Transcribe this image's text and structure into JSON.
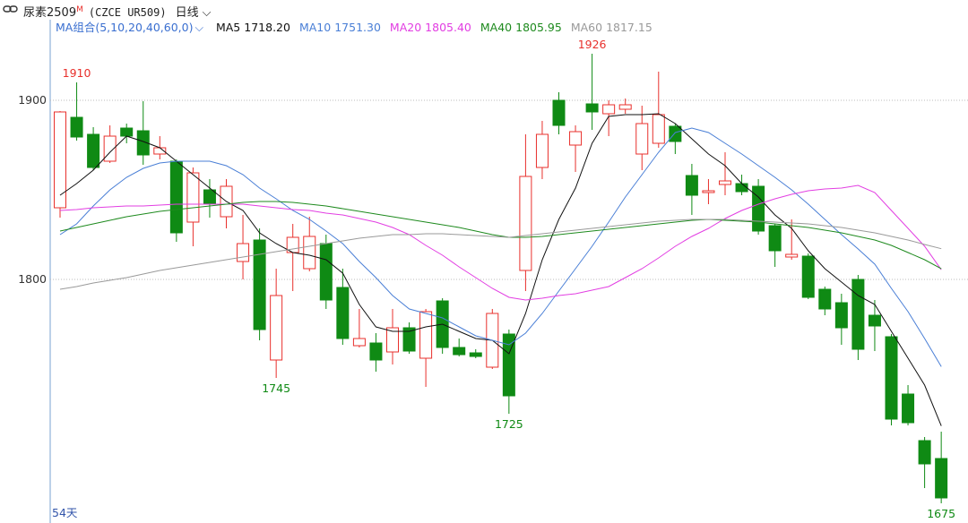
{
  "header": {
    "symbol": "尿素2509",
    "marker": "M",
    "code": "(CZCE UR509)",
    "period": "日线"
  },
  "chart_data": {
    "type": "candlestick",
    "ma_label": "MA组合(5,10,20,40,60,0)",
    "days_label": "54天",
    "ylim": [
      1666,
      1936
    ],
    "yticks": [
      1800,
      1900
    ],
    "grid": true,
    "up_color": "#e8302c",
    "down_color": "#0f8a14",
    "categories": [
      null,
      null,
      null,
      null,
      null,
      null,
      null,
      null,
      null,
      null,
      null,
      null,
      null,
      null,
      null,
      null,
      null,
      null,
      null,
      null,
      null,
      null,
      null,
      null,
      null,
      null,
      null,
      null,
      null,
      null,
      null,
      null,
      null,
      null,
      null,
      null,
      null,
      null,
      null,
      null,
      null,
      null,
      null,
      null,
      null,
      null,
      null,
      null,
      null,
      null,
      null,
      null,
      null,
      null
    ],
    "open": [
      1840,
      1890.5,
      1881,
      1866,
      1884.5,
      1883,
      1870,
      1866,
      1832,
      1850,
      1835,
      1810,
      1822,
      1755,
      1815,
      1806,
      1820,
      1795.5,
      1763,
      1764.5,
      1759.5,
      1773,
      1756,
      1788,
      1762,
      1759,
      1751,
      1769.5,
      1805,
      1862.5,
      1900,
      1875,
      1898,
      1892.5,
      1895,
      1870,
      1876,
      1885.5,
      1858,
      1848.5,
      1853,
      1853.5,
      1852,
      1830,
      1812.5,
      1813,
      1794.5,
      1787,
      1800,
      1780,
      1768,
      1736,
      1710,
      1700
    ],
    "high": [
      1894,
      1910,
      1885,
      1886,
      1887,
      1899.5,
      1880,
      1867,
      1862.5,
      1856,
      1856,
      1836,
      1828.5,
      1806,
      1831,
      1835,
      1825,
      1806,
      1783.5,
      1770,
      1783.5,
      1776,
      1783.5,
      1789.5,
      1767,
      1761,
      1783.5,
      1772,
      1881,
      1888.5,
      1904.5,
      1886,
      1926,
      1900,
      1901,
      1897,
      1916,
      1887,
      1864.5,
      1856,
      1871,
      1858.5,
      1856,
      1831,
      1833.5,
      1814.5,
      1796,
      1792,
      1802.5,
      1788.5,
      1769.5,
      1741,
      1712,
      1715
    ],
    "low": [
      1834.5,
      1877.5,
      1861,
      1865,
      1876,
      1864,
      1867,
      1821,
      1818.5,
      1834.5,
      1828.5,
      1800,
      1766,
      1745,
      1793.5,
      1804.5,
      1783.5,
      1763.5,
      1762,
      1748.5,
      1752.5,
      1758.5,
      1740,
      1758.5,
      1757,
      1756,
      1750,
      1725,
      1793.5,
      1856,
      1881,
      1860,
      1883.5,
      1880,
      1892.5,
      1861,
      1873.5,
      1870,
      1836,
      1842,
      1847,
      1847,
      1825,
      1807,
      1811,
      1789,
      1780,
      1763.5,
      1755,
      1760,
      1718.5,
      1718.5,
      1683.5,
      1675
    ],
    "close": [
      1893.5,
      1879.5,
      1862.5,
      1880,
      1880,
      1869.5,
      1873.5,
      1826,
      1859.5,
      1842.5,
      1852,
      1820,
      1772,
      1791,
      1823.5,
      1824,
      1788.5,
      1767,
      1767,
      1755,
      1773,
      1760,
      1782,
      1762,
      1758,
      1757,
      1781,
      1735,
      1857.5,
      1881,
      1886,
      1882.5,
      1893.5,
      1897.5,
      1897.5,
      1887,
      1892,
      1877,
      1847,
      1849.5,
      1855,
      1849,
      1827,
      1816,
      1814,
      1790,
      1783.5,
      1773,
      1761,
      1774,
      1722,
      1720,
      1697,
      1678
    ],
    "series": [
      {
        "name": "MA5",
        "color": "#111111",
        "last_label": "1718.20",
        "values": [
          1847,
          1853.5,
          1861,
          1871,
          1880,
          1877,
          1873.5,
          1866,
          1858.5,
          1851,
          1843.5,
          1838.5,
          1826,
          1820,
          1815,
          1813.5,
          1811,
          1803.5,
          1786,
          1773.5,
          1771,
          1771,
          1773.5,
          1775,
          1771,
          1767,
          1766,
          1758.5,
          1781,
          1811,
          1833.5,
          1851,
          1876,
          1891,
          1892,
          1892,
          1892.5,
          1887,
          1878.5,
          1870,
          1863.5,
          1853.5,
          1846,
          1836,
          1828.5,
          1816,
          1806,
          1798.5,
          1791,
          1786,
          1771,
          1756,
          1741,
          1718.2
        ]
      },
      {
        "name": "MA10",
        "color": "#4a7fd6",
        "last_label": "1751.30",
        "values": [
          1825,
          1831,
          1841,
          1850,
          1857,
          1862,
          1865,
          1866,
          1866,
          1866,
          1863.5,
          1858.5,
          1851,
          1845,
          1838.5,
          1833.5,
          1827,
          1820,
          1810,
          1801,
          1791,
          1783.5,
          1781,
          1778.5,
          1773.5,
          1768.5,
          1766,
          1763.5,
          1770,
          1781,
          1793.5,
          1806,
          1818.5,
          1832,
          1846,
          1858.5,
          1871,
          1882,
          1884.5,
          1882,
          1876,
          1870,
          1863.5,
          1857,
          1850,
          1842,
          1833.5,
          1825,
          1817,
          1808.5,
          1795,
          1782,
          1767,
          1751.3
        ]
      },
      {
        "name": "MA20",
        "color": "#e23ee2",
        "last_label": "1805.40",
        "values": [
          1838.5,
          1839,
          1840,
          1840.5,
          1841,
          1841,
          1841.5,
          1842,
          1842,
          1842,
          1842,
          1842,
          1841,
          1840,
          1839,
          1838.5,
          1837,
          1836,
          1834,
          1832,
          1829,
          1825,
          1819,
          1813.5,
          1807,
          1801,
          1795,
          1790,
          1788.5,
          1789.5,
          1791,
          1792,
          1794,
          1796,
          1801,
          1806,
          1812,
          1818.5,
          1824,
          1828.5,
          1834,
          1838.5,
          1842,
          1845,
          1847.5,
          1849.5,
          1850.5,
          1851,
          1852.5,
          1848.5,
          1838.5,
          1828.5,
          1818.5,
          1805.4
        ]
      },
      {
        "name": "MA40",
        "color": "#1e8a1e",
        "last_label": "1805.95",
        "values": [
          1827,
          1829,
          1831,
          1833,
          1835,
          1836.5,
          1838,
          1839,
          1840,
          1841,
          1842,
          1843,
          1843.5,
          1843.5,
          1843,
          1842,
          1841,
          1839.5,
          1838,
          1836.5,
          1835,
          1833.5,
          1832,
          1830.5,
          1829,
          1827,
          1825,
          1823.5,
          1823.5,
          1824,
          1825,
          1826,
          1827,
          1828,
          1829,
          1830,
          1831,
          1832,
          1833,
          1833.5,
          1833,
          1832.5,
          1832,
          1831,
          1830,
          1829,
          1827.5,
          1826,
          1824,
          1822,
          1819,
          1815,
          1811,
          1805.95
        ]
      },
      {
        "name": "MA60",
        "color": "#9a9a9a",
        "last_label": "1817.15",
        "values": [
          1794.5,
          1796,
          1798,
          1799.5,
          1801,
          1803,
          1805,
          1806.5,
          1808,
          1809.5,
          1811,
          1812.5,
          1814,
          1815.5,
          1817,
          1818.5,
          1820,
          1821.5,
          1823,
          1824,
          1825,
          1825,
          1825.5,
          1825.5,
          1825,
          1824.5,
          1824,
          1823.5,
          1824.5,
          1825.5,
          1826.5,
          1827.5,
          1828.5,
          1829.5,
          1830.5,
          1831.5,
          1832.5,
          1833,
          1833.5,
          1833.5,
          1833.5,
          1833,
          1832.5,
          1832,
          1831.5,
          1831,
          1830,
          1829,
          1827.5,
          1826,
          1824,
          1822,
          1819.5,
          1817.15
        ]
      }
    ],
    "annotations": [
      {
        "index": 1,
        "value": 1910,
        "position": "above"
      },
      {
        "index": 13,
        "value": 1745,
        "position": "below"
      },
      {
        "index": 27,
        "value": 1725,
        "position": "below"
      },
      {
        "index": 32,
        "value": 1926,
        "position": "above"
      },
      {
        "index": 53,
        "value": 1675,
        "position": "below"
      }
    ]
  }
}
